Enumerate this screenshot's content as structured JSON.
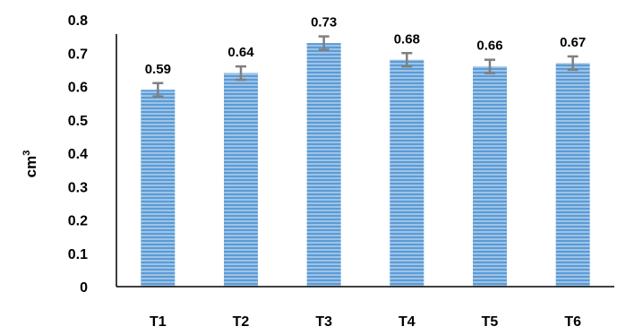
{
  "chart_data": {
    "type": "bar",
    "title": "",
    "xlabel": "",
    "ylabel": "cm",
    "ylabel_superscript": "3",
    "categories": [
      "T1",
      "T2",
      "T3",
      "T4",
      "T5",
      "T6"
    ],
    "values": [
      0.59,
      0.64,
      0.73,
      0.68,
      0.66,
      0.67
    ],
    "value_labels": [
      "0.59",
      "0.64",
      "0.73",
      "0.68",
      "0.66",
      "0.67"
    ],
    "error": [
      0.02,
      0.02,
      0.02,
      0.02,
      0.02,
      0.02
    ],
    "ylim": [
      0,
      0.8
    ],
    "yticks": [
      "0",
      "0.1",
      "0.2",
      "0.3",
      "0.4",
      "0.5",
      "0.6",
      "0.7",
      "0.8"
    ],
    "grid": false,
    "legend": "none",
    "colors": {
      "bar_fill": "#9dc3e6",
      "bar_stripe": "#5b9bd5",
      "error_bar": "#7f7f7f",
      "axis": "#000000"
    }
  }
}
